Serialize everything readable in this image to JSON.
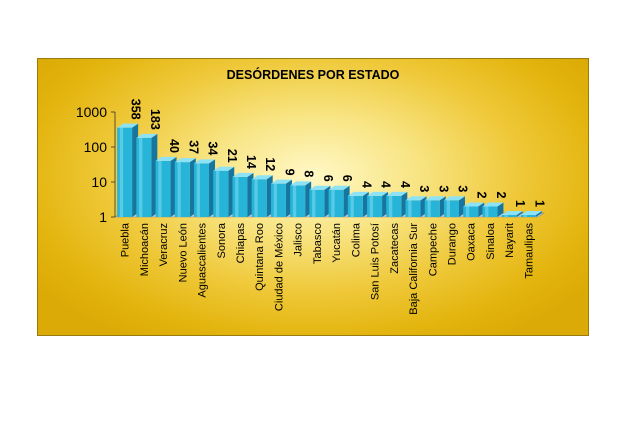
{
  "chart_data": {
    "type": "bar",
    "title": "DESÓRDENES POR ESTADO",
    "xlabel": "",
    "ylabel": "",
    "y_scale": "log",
    "ylim": [
      1,
      1000
    ],
    "y_ticks": [
      "1",
      "10",
      "100",
      "1000"
    ],
    "grid": false,
    "legend": "none",
    "bar_color": "#26b4d8",
    "categories": [
      "Puebla",
      "Michoacán",
      "Veracruz",
      "Nuevo León",
      "Aguascalientes",
      "Sonora",
      "Chiapas",
      "Quintana Roo",
      "Ciudad de México",
      "Jalisco",
      "Tabasco",
      "Yucatán",
      "Colima",
      "San Luis Potosí",
      "Zacatecas",
      "Baja California Sur",
      "Campeche",
      "Durango",
      "Oaxaca",
      "Sinaloa",
      "Nayarit",
      "Tamaulipas"
    ],
    "values": [
      358,
      183,
      40,
      37,
      34,
      21,
      14,
      12,
      9,
      8,
      6,
      6,
      4,
      4,
      4,
      3,
      3,
      3,
      2,
      2,
      1,
      1
    ]
  }
}
